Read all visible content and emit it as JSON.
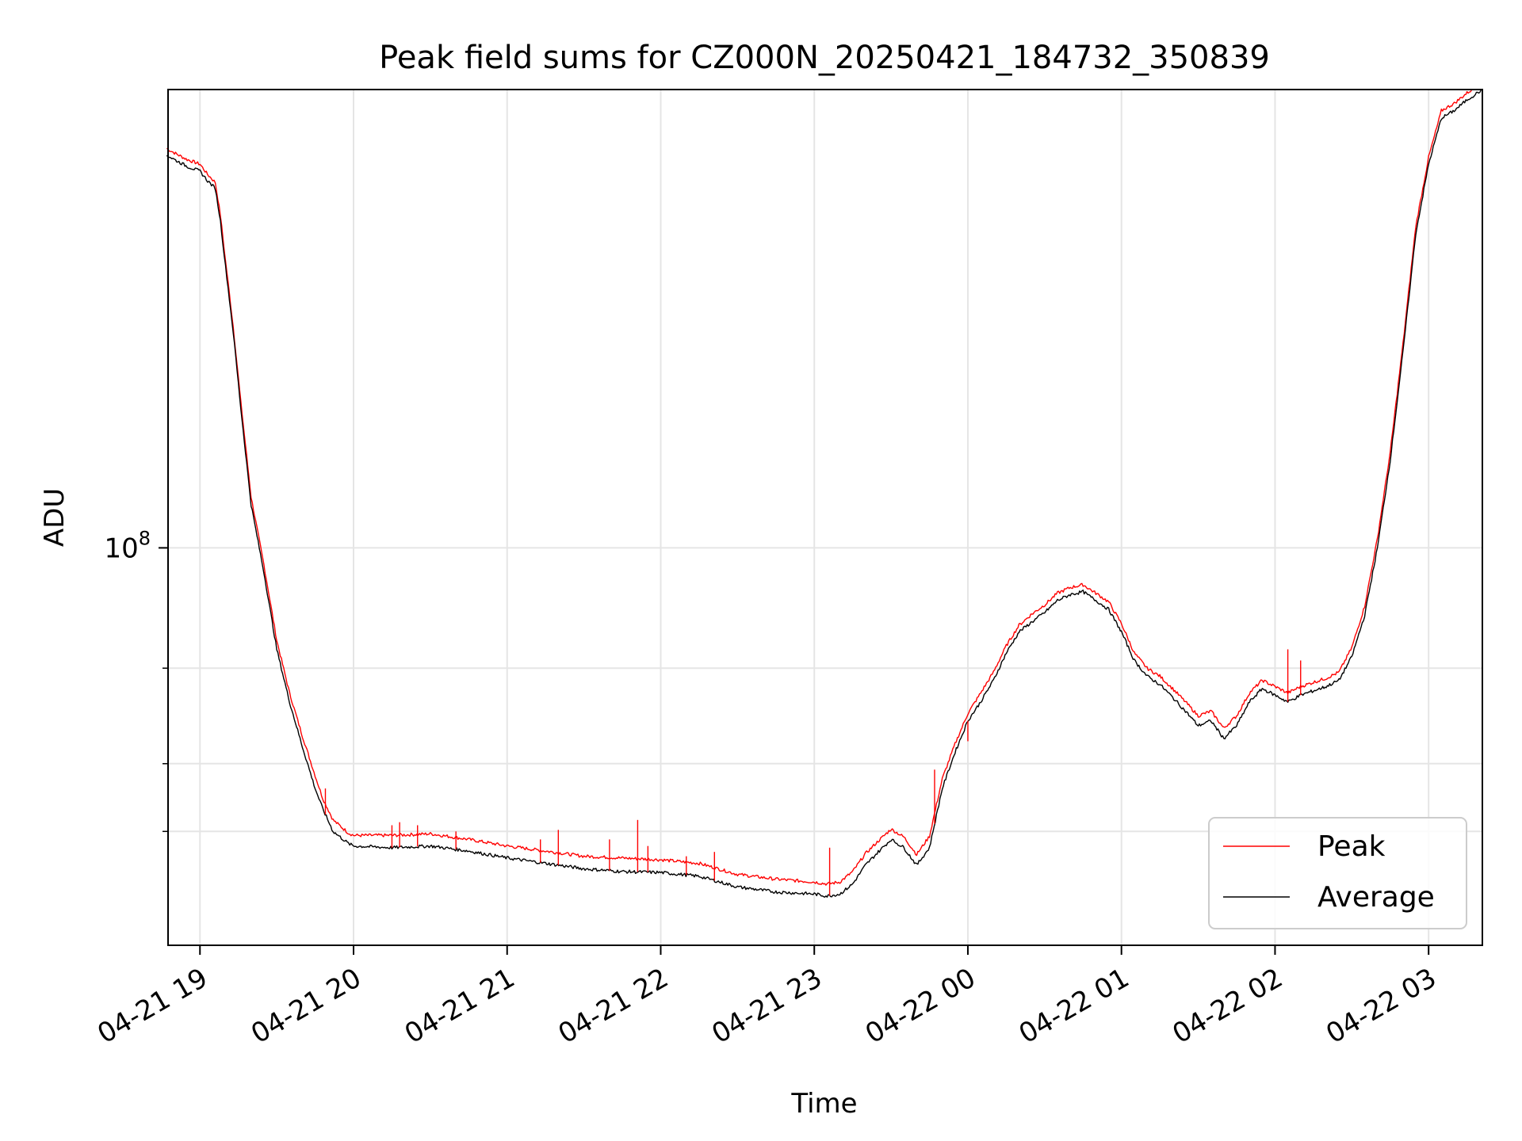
{
  "chart_data": {
    "type": "line",
    "title": "Peak field sums for CZ000N_20250421_184732_350839",
    "xlabel": "Time",
    "ylabel": "ADU",
    "yscale": "log",
    "grid": true,
    "legend": {
      "placement": "lower-right",
      "entries": [
        "Peak",
        "Average"
      ]
    },
    "xlim": [
      "2025-04-21 18:47:32",
      "2025-04-22 03:21:00"
    ],
    "ylim": [
      18500000,
      700000000
    ],
    "x_ticks": [
      {
        "t": "2025-04-21 19:00",
        "label": "04-21 19"
      },
      {
        "t": "2025-04-21 20:00",
        "label": "04-21 20"
      },
      {
        "t": "2025-04-21 21:00",
        "label": "04-21 21"
      },
      {
        "t": "2025-04-21 22:00",
        "label": "04-21 22"
      },
      {
        "t": "2025-04-21 23:00",
        "label": "04-21 23"
      },
      {
        "t": "2025-04-22 00:00",
        "label": "04-22 00"
      },
      {
        "t": "2025-04-22 01:00",
        "label": "04-22 01"
      },
      {
        "t": "2025-04-22 02:00",
        "label": "04-22 02"
      },
      {
        "t": "2025-04-22 03:00",
        "label": "04-22 03"
      }
    ],
    "y_major_tick": {
      "value": 100000000,
      "label_base": "10",
      "label_exp": "8"
    },
    "y_minor_ticks": [
      30000000,
      40000000,
      60000000
    ],
    "series": [
      {
        "name": "Average",
        "color": "#000000",
        "points": [
          [
            "2025-04-21 18:47",
            530000000
          ],
          [
            "2025-04-21 18:50",
            520000000
          ],
          [
            "2025-04-21 18:55",
            505000000
          ],
          [
            "2025-04-21 19:00",
            495000000
          ],
          [
            "2025-04-21 19:03",
            475000000
          ],
          [
            "2025-04-21 19:06",
            460000000
          ],
          [
            "2025-04-21 19:08",
            400000000
          ],
          [
            "2025-04-21 19:10",
            330000000
          ],
          [
            "2025-04-21 19:13",
            250000000
          ],
          [
            "2025-04-21 19:16",
            180000000
          ],
          [
            "2025-04-21 19:20",
            120000000
          ],
          [
            "2025-04-21 19:25",
            90000000
          ],
          [
            "2025-04-21 19:30",
            65000000
          ],
          [
            "2025-04-21 19:35",
            52000000
          ],
          [
            "2025-04-21 19:40",
            43000000
          ],
          [
            "2025-04-21 19:45",
            36000000
          ],
          [
            "2025-04-21 19:48",
            33000000
          ],
          [
            "2025-04-21 19:52",
            30000000
          ],
          [
            "2025-04-21 19:58",
            28500000
          ],
          [
            "2025-04-21 20:00",
            28200000
          ],
          [
            "2025-04-21 20:15",
            28000000
          ],
          [
            "2025-04-21 20:30",
            28200000
          ],
          [
            "2025-04-21 20:45",
            27600000
          ],
          [
            "2025-04-21 21:00",
            26800000
          ],
          [
            "2025-04-21 21:15",
            26200000
          ],
          [
            "2025-04-21 21:30",
            25600000
          ],
          [
            "2025-04-21 21:45",
            25300000
          ],
          [
            "2025-04-21 22:00",
            25200000
          ],
          [
            "2025-04-21 22:15",
            24800000
          ],
          [
            "2025-04-21 22:30",
            23700000
          ],
          [
            "2025-04-21 22:45",
            23200000
          ],
          [
            "2025-04-21 23:00",
            23000000
          ],
          [
            "2025-04-21 23:05",
            22800000
          ],
          [
            "2025-04-21 23:10",
            23000000
          ],
          [
            "2025-04-21 23:15",
            24000000
          ],
          [
            "2025-04-21 23:20",
            26000000
          ],
          [
            "2025-04-21 23:25",
            27500000
          ],
          [
            "2025-04-21 23:30",
            29000000
          ],
          [
            "2025-04-21 23:35",
            28000000
          ],
          [
            "2025-04-21 23:40",
            26000000
          ],
          [
            "2025-04-21 23:45",
            28000000
          ],
          [
            "2025-04-21 23:50",
            36000000
          ],
          [
            "2025-04-21 23:55",
            42000000
          ],
          [
            "2025-04-22 00:00",
            48000000
          ],
          [
            "2025-04-22 00:05",
            52000000
          ],
          [
            "2025-04-22 00:10",
            57000000
          ],
          [
            "2025-04-22 00:15",
            64000000
          ],
          [
            "2025-04-22 00:20",
            70000000
          ],
          [
            "2025-04-22 00:25",
            73000000
          ],
          [
            "2025-04-22 00:30",
            76000000
          ],
          [
            "2025-04-22 00:35",
            80000000
          ],
          [
            "2025-04-22 00:40",
            82000000
          ],
          [
            "2025-04-22 00:45",
            83000000
          ],
          [
            "2025-04-22 00:50",
            80000000
          ],
          [
            "2025-04-22 00:55",
            77000000
          ],
          [
            "2025-04-22 01:00",
            70000000
          ],
          [
            "2025-04-22 01:05",
            62000000
          ],
          [
            "2025-04-22 01:10",
            58000000
          ],
          [
            "2025-04-22 01:15",
            56000000
          ],
          [
            "2025-04-22 01:20",
            53000000
          ],
          [
            "2025-04-22 01:25",
            50000000
          ],
          [
            "2025-04-22 01:30",
            47000000
          ],
          [
            "2025-04-22 01:35",
            48000000
          ],
          [
            "2025-04-22 01:40",
            44500000
          ],
          [
            "2025-04-22 01:45",
            47000000
          ],
          [
            "2025-04-22 01:50",
            52000000
          ],
          [
            "2025-04-22 01:55",
            55000000
          ],
          [
            "2025-04-22 02:00",
            53500000
          ],
          [
            "2025-04-22 02:05",
            52000000
          ],
          [
            "2025-04-22 02:10",
            53500000
          ],
          [
            "2025-04-22 02:15",
            54500000
          ],
          [
            "2025-04-22 02:20",
            55500000
          ],
          [
            "2025-04-22 02:25",
            57000000
          ],
          [
            "2025-04-22 02:30",
            63000000
          ],
          [
            "2025-04-22 02:35",
            75000000
          ],
          [
            "2025-04-22 02:40",
            100000000
          ],
          [
            "2025-04-22 02:45",
            145000000
          ],
          [
            "2025-04-22 02:50",
            230000000
          ],
          [
            "2025-04-22 02:55",
            380000000
          ],
          [
            "2025-04-22 03:00",
            510000000
          ],
          [
            "2025-04-22 03:05",
            620000000
          ],
          [
            "2025-04-22 03:10",
            640000000
          ],
          [
            "2025-04-22 03:15",
            670000000
          ],
          [
            "2025-04-22 03:21",
            700000000
          ]
        ]
      },
      {
        "name": "Peak",
        "color": "#ff0000",
        "points": [
          [
            "2025-04-21 18:47",
            545000000
          ],
          [
            "2025-04-21 18:50",
            535000000
          ],
          [
            "2025-04-21 18:55",
            520000000
          ],
          [
            "2025-04-21 19:00",
            510000000
          ],
          [
            "2025-04-21 19:03",
            488000000
          ],
          [
            "2025-04-21 19:06",
            472000000
          ],
          [
            "2025-04-21 19:08",
            410000000
          ],
          [
            "2025-04-21 19:10",
            338000000
          ],
          [
            "2025-04-21 19:13",
            256000000
          ],
          [
            "2025-04-21 19:16",
            185000000
          ],
          [
            "2025-04-21 19:20",
            124000000
          ],
          [
            "2025-04-21 19:25",
            93000000
          ],
          [
            "2025-04-21 19:30",
            67500000
          ],
          [
            "2025-04-21 19:35",
            54000000
          ],
          [
            "2025-04-21 19:40",
            45000000
          ],
          [
            "2025-04-21 19:45",
            38000000
          ],
          [
            "2025-04-21 19:48",
            34500000
          ],
          [
            "2025-04-21 19:52",
            31500000
          ],
          [
            "2025-04-21 19:58",
            29800000
          ],
          [
            "2025-04-21 20:00",
            29500000
          ],
          [
            "2025-04-21 20:15",
            29500000
          ],
          [
            "2025-04-21 20:30",
            29700000
          ],
          [
            "2025-04-21 20:45",
            29000000
          ],
          [
            "2025-04-21 21:00",
            28200000
          ],
          [
            "2025-04-21 21:15",
            27600000
          ],
          [
            "2025-04-21 21:30",
            27000000
          ],
          [
            "2025-04-21 21:45",
            26800000
          ],
          [
            "2025-04-21 22:00",
            26600000
          ],
          [
            "2025-04-21 22:15",
            26200000
          ],
          [
            "2025-04-21 22:30",
            25000000
          ],
          [
            "2025-04-21 22:45",
            24500000
          ],
          [
            "2025-04-21 23:00",
            24200000
          ],
          [
            "2025-04-21 23:05",
            24000000
          ],
          [
            "2025-04-21 23:10",
            24200000
          ],
          [
            "2025-04-21 23:15",
            25300000
          ],
          [
            "2025-04-21 23:20",
            27300000
          ],
          [
            "2025-04-21 23:25",
            28800000
          ],
          [
            "2025-04-21 23:30",
            30300000
          ],
          [
            "2025-04-21 23:35",
            29300000
          ],
          [
            "2025-04-21 23:40",
            27200000
          ],
          [
            "2025-04-21 23:45",
            29400000
          ],
          [
            "2025-04-21 23:50",
            37500000
          ],
          [
            "2025-04-21 23:55",
            43500000
          ],
          [
            "2025-04-22 00:00",
            49500000
          ],
          [
            "2025-04-22 00:05",
            54000000
          ],
          [
            "2025-04-22 00:10",
            59000000
          ],
          [
            "2025-04-22 00:15",
            66000000
          ],
          [
            "2025-04-22 00:20",
            72000000
          ],
          [
            "2025-04-22 00:25",
            75500000
          ],
          [
            "2025-04-22 00:30",
            78500000
          ],
          [
            "2025-04-22 00:35",
            82500000
          ],
          [
            "2025-04-22 00:40",
            84500000
          ],
          [
            "2025-04-22 00:45",
            85500000
          ],
          [
            "2025-04-22 00:50",
            82500000
          ],
          [
            "2025-04-22 00:55",
            79500000
          ],
          [
            "2025-04-22 01:00",
            72500000
          ],
          [
            "2025-04-22 01:05",
            64000000
          ],
          [
            "2025-04-22 01:10",
            60000000
          ],
          [
            "2025-04-22 01:15",
            58000000
          ],
          [
            "2025-04-22 01:20",
            55000000
          ],
          [
            "2025-04-22 01:25",
            52000000
          ],
          [
            "2025-04-22 01:30",
            49000000
          ],
          [
            "2025-04-22 01:35",
            50000000
          ],
          [
            "2025-04-22 01:40",
            46500000
          ],
          [
            "2025-04-22 01:45",
            49000000
          ],
          [
            "2025-04-22 01:50",
            54000000
          ],
          [
            "2025-04-22 01:55",
            57000000
          ],
          [
            "2025-04-22 02:00",
            55500000
          ],
          [
            "2025-04-22 02:05",
            54000000
          ],
          [
            "2025-04-22 02:10",
            55500000
          ],
          [
            "2025-04-22 02:15",
            56500000
          ],
          [
            "2025-04-22 02:20",
            57500000
          ],
          [
            "2025-04-22 02:25",
            59000000
          ],
          [
            "2025-04-22 02:30",
            65500000
          ],
          [
            "2025-04-22 02:35",
            78000000
          ],
          [
            "2025-04-22 02:40",
            104000000
          ],
          [
            "2025-04-22 02:45",
            150000000
          ],
          [
            "2025-04-22 02:50",
            238000000
          ],
          [
            "2025-04-22 02:55",
            392000000
          ],
          [
            "2025-04-22 03:00",
            525000000
          ],
          [
            "2025-04-22 03:05",
            640000000
          ],
          [
            "2025-04-22 03:10",
            660000000
          ],
          [
            "2025-04-22 03:15",
            690000000
          ],
          [
            "2025-04-22 03:21",
            720000000
          ]
        ]
      }
    ],
    "peak_spikes": [
      [
        "2025-04-21 19:49",
        36000000
      ],
      [
        "2025-04-21 20:15",
        30800000
      ],
      [
        "2025-04-21 20:18",
        31200000
      ],
      [
        "2025-04-21 20:25",
        30800000
      ],
      [
        "2025-04-21 20:40",
        30000000
      ],
      [
        "2025-04-21 21:13",
        29000000
      ],
      [
        "2025-04-21 21:20",
        30200000
      ],
      [
        "2025-04-21 21:40",
        29000000
      ],
      [
        "2025-04-21 21:51",
        31500000
      ],
      [
        "2025-04-21 21:55",
        28200000
      ],
      [
        "2025-04-21 22:10",
        27000000
      ],
      [
        "2025-04-21 22:21",
        27500000
      ],
      [
        "2025-04-21 23:06",
        28000000
      ],
      [
        "2025-04-21 23:47",
        39000000
      ],
      [
        "2025-04-22 00:00",
        44000000
      ],
      [
        "2025-04-22 00:20",
        70000000
      ],
      [
        "2025-04-22 02:05",
        65000000
      ],
      [
        "2025-04-22 02:10",
        62000000
      ]
    ]
  }
}
